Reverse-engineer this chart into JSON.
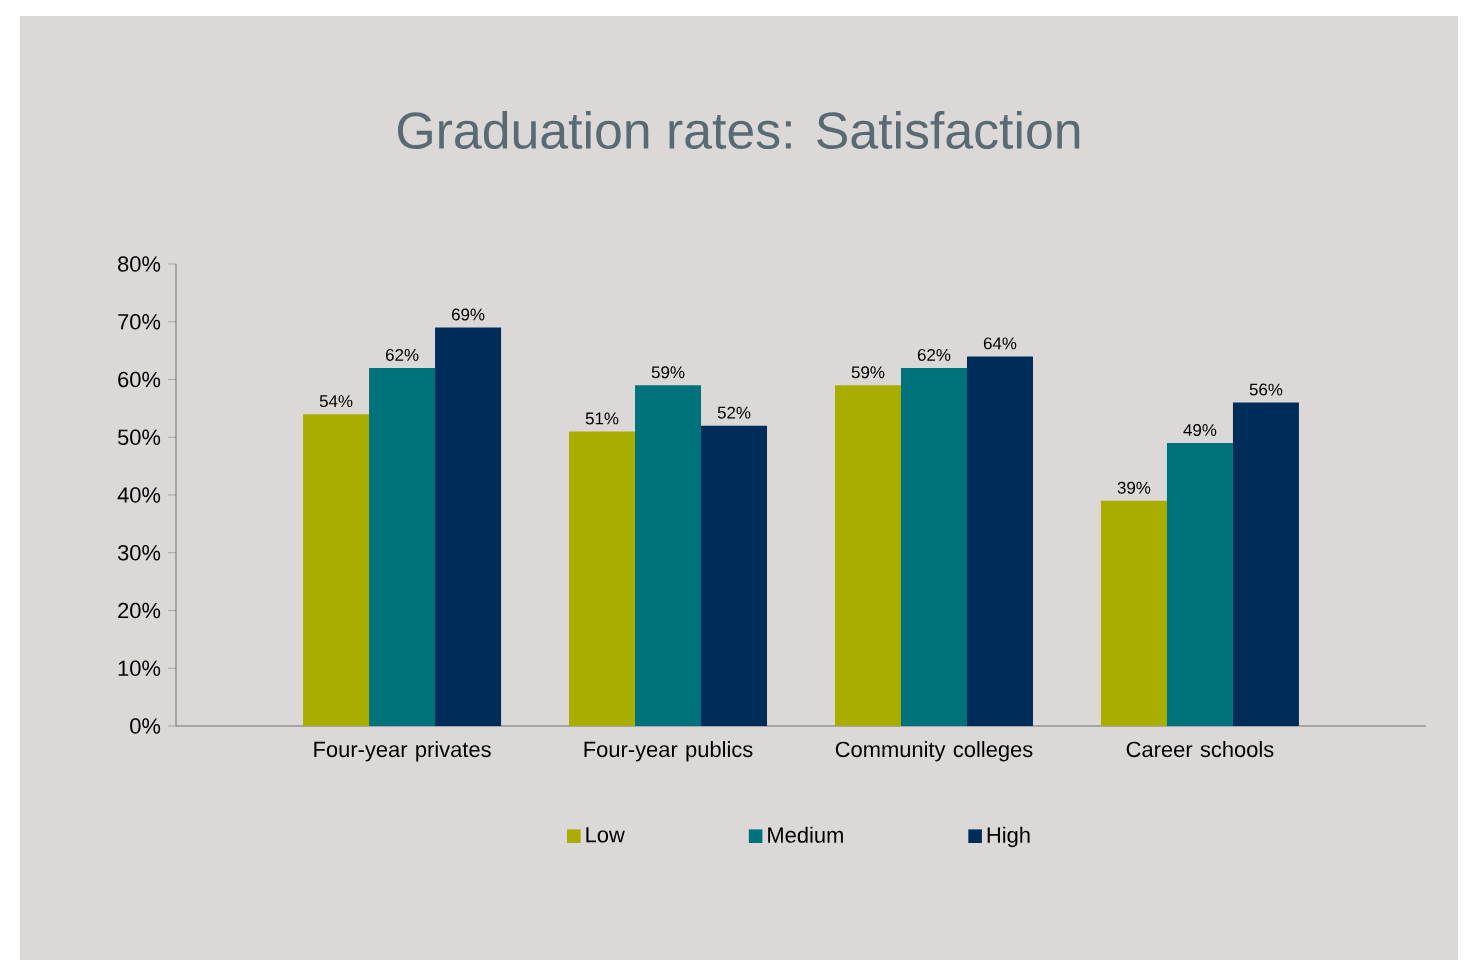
{
  "chart_data": {
    "type": "bar",
    "title": "Graduation rates: Satisfaction",
    "categories": [
      "Four-year privates",
      "Four-year publics",
      "Community colleges",
      "Career schools"
    ],
    "series": [
      {
        "name": "Low",
        "color": "#a8ad00",
        "values": [
          54,
          51,
          59,
          39
        ],
        "value_labels": [
          "54%",
          "51%",
          "59%",
          "39%"
        ]
      },
      {
        "name": "Medium",
        "color": "#00727b",
        "values": [
          62,
          59,
          62,
          49
        ],
        "value_labels": [
          "62%",
          "59%",
          "62%",
          "49%"
        ]
      },
      {
        "name": "High",
        "color": "#002c5a",
        "values": [
          69,
          52,
          64,
          56
        ],
        "value_labels": [
          "69%",
          "52%",
          "64%",
          "56%"
        ]
      }
    ],
    "ylim": [
      0,
      80
    ],
    "yticks": [
      {
        "value": 0,
        "label": "0%"
      },
      {
        "value": 10,
        "label": "10%"
      },
      {
        "value": 20,
        "label": "20%"
      },
      {
        "value": 30,
        "label": "30%"
      },
      {
        "value": 40,
        "label": "40%"
      },
      {
        "value": 50,
        "label": "50%"
      },
      {
        "value": 60,
        "label": "60%"
      },
      {
        "value": 70,
        "label": "70%"
      },
      {
        "value": 80,
        "label": "80%"
      }
    ],
    "grid": false,
    "legend": "bottom"
  }
}
